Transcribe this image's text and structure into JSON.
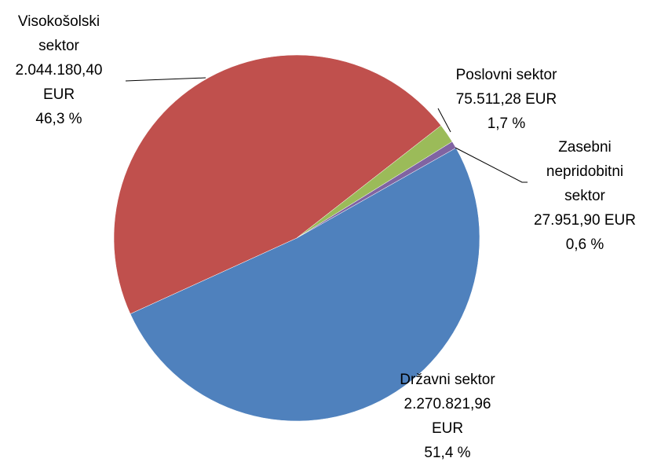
{
  "chart_data": {
    "type": "pie",
    "categories": [
      "Državni sektor",
      "Visokošolski sektor",
      "Poslovni sektor",
      "Zasebni nepridobitni sektor"
    ],
    "values": [
      2270821.96,
      2044180.4,
      75511.28,
      27951.9
    ],
    "value_labels": [
      "2.270.821,96 EUR",
      "2.044.180,40 EUR",
      "75.511,28 EUR",
      "27.951,90 EUR"
    ],
    "percent_labels": [
      "51,4 %",
      "46,3 %",
      "1,7 %",
      "0,6 %"
    ],
    "colors": [
      "#4f81bd",
      "#c0504d",
      "#9bbb59",
      "#8064a2"
    ]
  }
}
